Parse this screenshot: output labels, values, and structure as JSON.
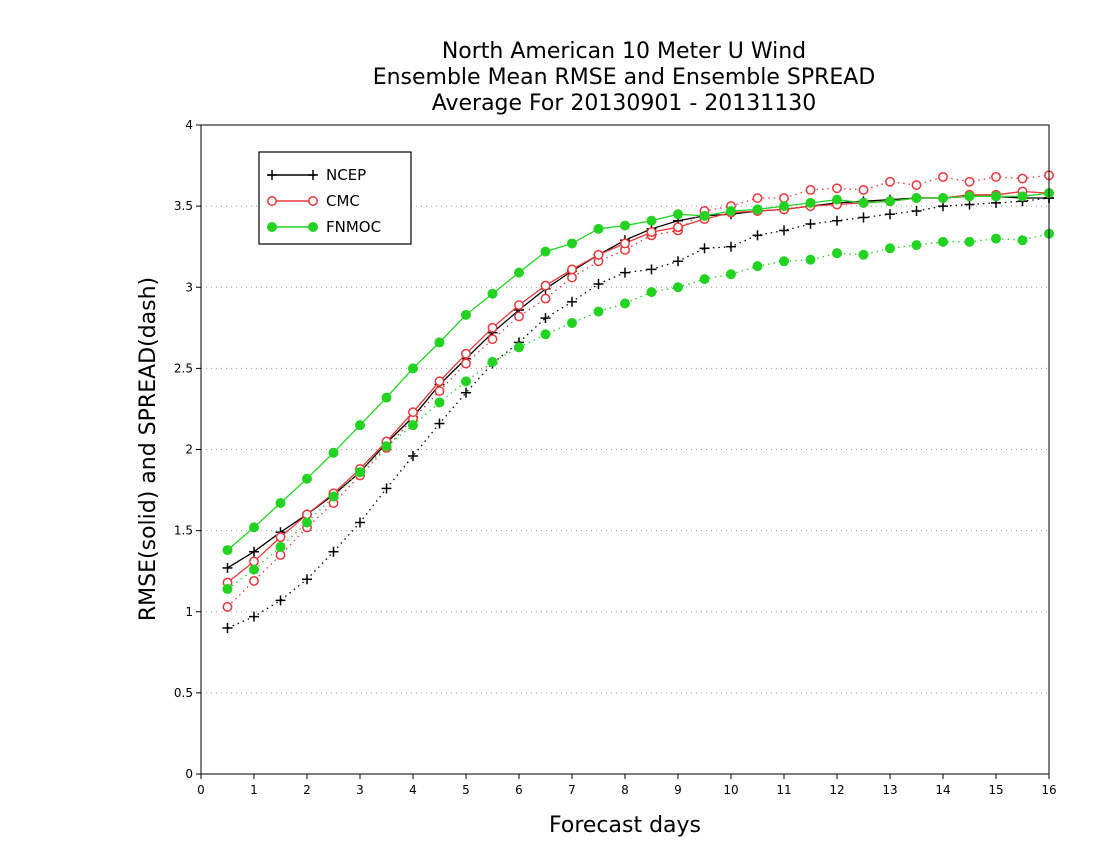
{
  "chart_data": {
    "type": "line",
    "title": [
      "North American 10 Meter U Wind",
      "Ensemble Mean RMSE and Ensemble SPREAD",
      "Average For 20130901 - 20131130"
    ],
    "xlabel": "Forecast days",
    "ylabel": "RMSE(solid) and SPREAD(dash)",
    "xlim": [
      0,
      16
    ],
    "ylim": [
      0,
      4
    ],
    "xticks": [
      "0",
      "1",
      "2",
      "3",
      "4",
      "5",
      "6",
      "7",
      "8",
      "9",
      "10",
      "11",
      "12",
      "13",
      "14",
      "15",
      "16"
    ],
    "yticks": [
      "0",
      "0.5",
      "1",
      "1.5",
      "2",
      "2.5",
      "3",
      "3.5",
      "4"
    ],
    "grid": "horizontal dotted",
    "legend_position": "top-left",
    "x": [
      0.5,
      1.0,
      1.5,
      2.0,
      2.5,
      3.0,
      3.5,
      4.0,
      4.5,
      5.0,
      5.5,
      6.0,
      6.5,
      7.0,
      7.5,
      8.0,
      8.5,
      9.0,
      9.5,
      10.0,
      10.5,
      11.0,
      11.5,
      12.0,
      12.5,
      13.0,
      13.5,
      14.0,
      14.5,
      15.0,
      15.5,
      16.0
    ],
    "series": [
      {
        "name": "NCEP",
        "color": "#000000",
        "marker": "plus",
        "rmse": [
          1.27,
          1.37,
          1.49,
          1.6,
          1.72,
          1.86,
          2.04,
          2.2,
          2.4,
          2.56,
          2.72,
          2.86,
          2.99,
          3.1,
          3.2,
          3.29,
          3.36,
          3.41,
          3.44,
          3.45,
          3.47,
          3.48,
          3.5,
          3.52,
          3.53,
          3.54,
          3.55,
          3.55,
          3.56,
          3.56,
          3.55,
          3.55
        ],
        "spread": [
          0.9,
          0.97,
          1.07,
          1.2,
          1.37,
          1.55,
          1.76,
          1.96,
          2.16,
          2.35,
          2.53,
          2.66,
          2.81,
          2.91,
          3.02,
          3.09,
          3.11,
          3.16,
          3.24,
          3.25,
          3.32,
          3.35,
          3.39,
          3.41,
          3.43,
          3.45,
          3.47,
          3.5,
          3.51,
          3.52,
          3.53,
          3.55
        ]
      },
      {
        "name": "CMC",
        "color": "#e8373b",
        "marker": "open-circle",
        "rmse": [
          1.18,
          1.31,
          1.46,
          1.6,
          1.73,
          1.88,
          2.05,
          2.23,
          2.42,
          2.59,
          2.75,
          2.89,
          3.01,
          3.11,
          3.2,
          3.27,
          3.34,
          3.37,
          3.42,
          3.46,
          3.47,
          3.48,
          3.5,
          3.51,
          3.52,
          3.53,
          3.55,
          3.55,
          3.57,
          3.57,
          3.59,
          3.58
        ],
        "spread": [
          1.03,
          1.19,
          1.35,
          1.52,
          1.67,
          1.84,
          2.01,
          2.19,
          2.36,
          2.53,
          2.68,
          2.82,
          2.93,
          3.06,
          3.16,
          3.23,
          3.32,
          3.35,
          3.47,
          3.5,
          3.55,
          3.55,
          3.6,
          3.61,
          3.6,
          3.65,
          3.63,
          3.68,
          3.65,
          3.68,
          3.67,
          3.69
        ]
      },
      {
        "name": "FNMOC",
        "color": "#22d322",
        "marker": "filled-circle",
        "rmse": [
          1.38,
          1.52,
          1.67,
          1.82,
          1.98,
          2.15,
          2.32,
          2.5,
          2.66,
          2.83,
          2.96,
          3.09,
          3.22,
          3.27,
          3.36,
          3.38,
          3.41,
          3.45,
          3.44,
          3.47,
          3.48,
          3.5,
          3.52,
          3.54,
          3.52,
          3.53,
          3.55,
          3.55,
          3.56,
          3.56,
          3.56,
          3.58
        ],
        "spread": [
          1.14,
          1.26,
          1.4,
          1.55,
          1.71,
          1.86,
          2.02,
          2.15,
          2.29,
          2.42,
          2.54,
          2.63,
          2.71,
          2.78,
          2.85,
          2.9,
          2.97,
          3.0,
          3.05,
          3.08,
          3.13,
          3.16,
          3.17,
          3.21,
          3.2,
          3.24,
          3.26,
          3.28,
          3.28,
          3.3,
          3.29,
          3.33
        ]
      }
    ]
  }
}
